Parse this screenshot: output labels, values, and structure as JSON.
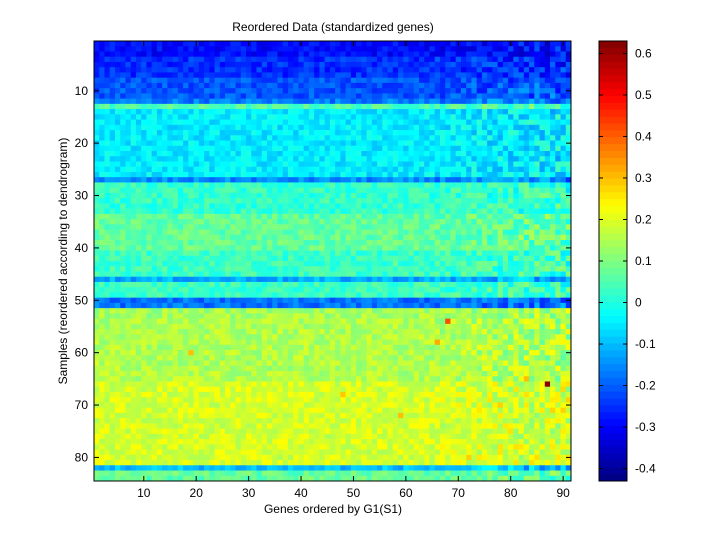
{
  "chart_data": {
    "type": "heatmap",
    "title": "Reordered Data (standardized genes)",
    "xlabel": "Genes ordered by G1(S1)",
    "ylabel": "Samples (reordered according to dendrogram)",
    "n_cols": 91,
    "n_rows": 84,
    "xlim": [
      0.5,
      91.5
    ],
    "ylim": [
      0.5,
      84.5
    ],
    "x_ticks": [
      10,
      20,
      30,
      40,
      50,
      60,
      70,
      80,
      90
    ],
    "y_ticks": [
      10,
      20,
      30,
      40,
      50,
      60,
      70,
      80
    ],
    "colorbar": {
      "colormap": "jet",
      "clim": [
        -0.43,
        0.63
      ],
      "ticks": [
        0.6,
        0.5,
        0.4,
        0.3,
        0.2,
        0.1,
        0,
        -0.1,
        -0.2,
        -0.3,
        -0.4
      ],
      "tick_labels": [
        "0.6",
        "0.5",
        "0.4",
        "0.3",
        "0.2",
        "0.1",
        "0",
        "-0.1",
        "-0.2",
        "-0.3",
        "-0.4"
      ]
    },
    "row_bands": [
      {
        "rows": [
          1,
          3
        ],
        "mean": -0.29
      },
      {
        "rows": [
          4,
          7
        ],
        "mean": -0.25
      },
      {
        "rows": [
          8,
          11
        ],
        "mean": -0.21
      },
      {
        "rows": [
          12,
          12
        ],
        "mean": -0.17
      },
      {
        "rows": [
          13,
          13
        ],
        "mean": 0.05
      },
      {
        "rows": [
          14,
          26
        ],
        "mean": -0.05
      },
      {
        "rows": [
          27,
          27
        ],
        "mean": -0.16
      },
      {
        "rows": [
          28,
          33
        ],
        "mean": 0.02
      },
      {
        "rows": [
          34,
          40
        ],
        "mean": 0.07
      },
      {
        "rows": [
          41,
          45
        ],
        "mean": 0.03
      },
      {
        "rows": [
          46,
          46
        ],
        "mean": -0.12
      },
      {
        "rows": [
          47,
          49
        ],
        "mean": 0.03
      },
      {
        "rows": [
          50,
          51
        ],
        "mean": -0.18
      },
      {
        "rows": [
          52,
          53
        ],
        "mean": 0.14
      },
      {
        "rows": [
          54,
          65
        ],
        "mean": 0.15
      },
      {
        "rows": [
          66,
          81
        ],
        "mean": 0.19
      },
      {
        "rows": [
          82,
          82
        ],
        "mean": -0.1
      },
      {
        "rows": [
          83,
          84
        ],
        "mean": 0.07
      }
    ],
    "outliers": [
      {
        "col": 87,
        "row": 66,
        "value": 0.62
      },
      {
        "col": 68,
        "row": 54,
        "value": 0.42
      },
      {
        "col": 66,
        "row": 58,
        "value": 0.32
      },
      {
        "col": 19,
        "row": 60,
        "value": 0.3
      },
      {
        "col": 59,
        "row": 72,
        "value": 0.3
      },
      {
        "col": 78,
        "row": 70,
        "value": 0.28
      },
      {
        "col": 83,
        "row": 65,
        "value": 0.3
      },
      {
        "col": 72,
        "row": 80,
        "value": 0.28
      },
      {
        "col": 48,
        "row": 68,
        "value": 0.29
      }
    ]
  }
}
